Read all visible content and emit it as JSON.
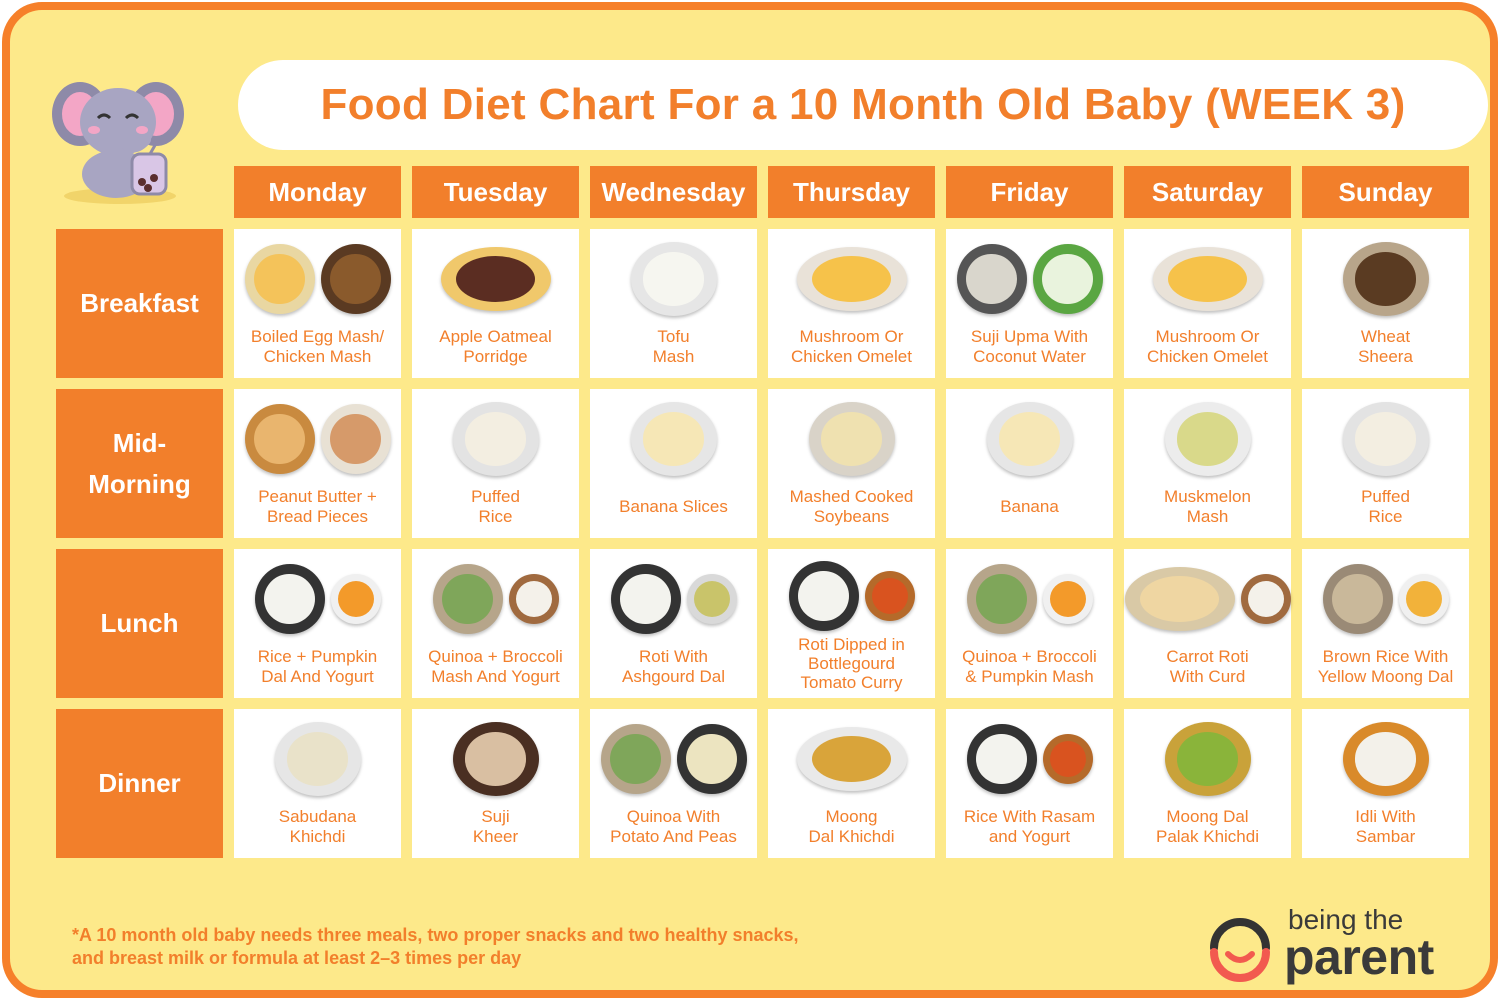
{
  "title": "Food Diet Chart For a 10 Month Old Baby (WEEK 3)",
  "days": [
    "Monday",
    "Tuesday",
    "Wednesday",
    "Thursday",
    "Friday",
    "Saturday",
    "Sunday"
  ],
  "meals": [
    {
      "name": "Breakfast",
      "items": [
        {
          "label": "Boiled Egg Mash/\nChicken Mash",
          "icon": "egg-chicken-bowls-icon"
        },
        {
          "label": "Apple Oatmeal\nPorridge",
          "icon": "oatmeal-porridge-icon"
        },
        {
          "label": "Tofu\nMash",
          "icon": "tofu-mash-icon"
        },
        {
          "label": "Mushroom Or\nChicken Omelet",
          "icon": "omelet-icon"
        },
        {
          "label": "Suji Upma With\nCoconut Water",
          "icon": "upma-coconut-icon"
        },
        {
          "label": "Mushroom Or\nChicken Omelet",
          "icon": "omelet-icon"
        },
        {
          "label": "Wheat\nSheera",
          "icon": "sheera-bowl-icon"
        }
      ]
    },
    {
      "name": "Mid-\nMorning",
      "items": [
        {
          "label": "Peanut Butter +\nBread Pieces",
          "icon": "peanut-butter-bread-icon"
        },
        {
          "label": "Puffed\nRice",
          "icon": "puffed-rice-icon"
        },
        {
          "label": "Banana Slices",
          "icon": "banana-slices-icon"
        },
        {
          "label": "Mashed Cooked\nSoybeans",
          "icon": "soybean-mash-icon"
        },
        {
          "label": "Banana",
          "icon": "banana-slices-icon"
        },
        {
          "label": "Muskmelon\nMash",
          "icon": "muskmelon-mash-icon"
        },
        {
          "label": "Puffed\nRice",
          "icon": "puffed-rice-icon"
        }
      ]
    },
    {
      "name": "Lunch",
      "items": [
        {
          "label": "Rice + Pumpkin\nDal And Yogurt",
          "icon": "rice-pumpkin-dal-icon"
        },
        {
          "label": "Quinoa + Broccoli\nMash And Yogurt",
          "icon": "quinoa-yogurt-icon"
        },
        {
          "label": "Roti With\nAshgourd Dal",
          "icon": "roti-dal-icon"
        },
        {
          "label": "Roti Dipped in\nBottlegourd\nTomato Curry",
          "icon": "roti-curry-icon"
        },
        {
          "label": "Quinoa + Broccoli\n& Pumpkin Mash",
          "icon": "quinoa-pumpkin-icon"
        },
        {
          "label": "Carrot Roti\nWith Curd",
          "icon": "roti-curd-icon"
        },
        {
          "label": "Brown Rice With\nYellow Moong Dal",
          "icon": "brown-rice-dal-icon"
        }
      ]
    },
    {
      "name": "Dinner",
      "items": [
        {
          "label": "Sabudana\nKhichdi",
          "icon": "khichdi-bowl-icon"
        },
        {
          "label": "Suji\nKheer",
          "icon": "kheer-bowl-icon"
        },
        {
          "label": "Quinoa With\nPotato And Peas",
          "icon": "quinoa-potato-icon"
        },
        {
          "label": "Moong\nDal Khichdi",
          "icon": "dal-khichdi-icon"
        },
        {
          "label": "Rice With Rasam\nand Yogurt",
          "icon": "rice-rasam-icon"
        },
        {
          "label": "Moong Dal\nPalak Khichdi",
          "icon": "palak-khichdi-icon"
        },
        {
          "label": "Idli With\nSambar",
          "icon": "idli-sambar-icon"
        }
      ]
    }
  ],
  "footnote": "*A 10 month old baby needs three meals, two proper snacks and two healthy snacks,\nand breast milk or formula at least 2–3 times per day",
  "brand": {
    "line1": "being the",
    "line2": "parent"
  },
  "colors": {
    "accent": "#f27f2b",
    "background": "#fde98a",
    "border": "#f6802a"
  }
}
